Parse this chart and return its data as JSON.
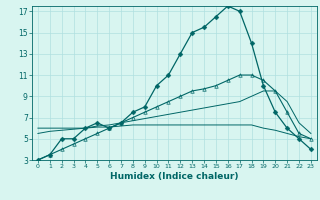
{
  "xlabel": "Humidex (Indice chaleur)",
  "background_color": "#d8f5f0",
  "grid_color": "#b0e0e0",
  "line_color": "#006666",
  "x_main": [
    0,
    1,
    2,
    3,
    4,
    5,
    6,
    7,
    8,
    9,
    10,
    11,
    12,
    13,
    14,
    15,
    16,
    17,
    18,
    19,
    20,
    21,
    22,
    23
  ],
  "y_main": [
    3,
    3.5,
    5,
    5,
    6,
    6.5,
    6,
    6.5,
    7.5,
    8,
    10,
    11,
    13,
    15,
    15.5,
    16.5,
    17.5,
    17,
    14,
    10,
    7.5,
    6,
    5,
    4
  ],
  "y_trend": [
    3,
    3.5,
    4,
    4.5,
    5,
    5.5,
    6,
    6.5,
    7,
    7.5,
    8,
    8.5,
    9,
    9.5,
    9.7,
    10,
    10.5,
    11,
    11,
    10.5,
    9.5,
    7.5,
    5.5,
    5
  ],
  "y_flat": [
    6,
    6,
    6,
    6,
    6,
    6.1,
    6.1,
    6.2,
    6.3,
    6.3,
    6.3,
    6.3,
    6.3,
    6.3,
    6.3,
    6.3,
    6.3,
    6.3,
    6.3,
    6.0,
    5.8,
    5.5,
    5.2,
    5
  ],
  "y_rise": [
    5.5,
    5.7,
    5.8,
    5.9,
    6.0,
    6.2,
    6.3,
    6.5,
    6.7,
    6.9,
    7.1,
    7.3,
    7.5,
    7.7,
    7.9,
    8.1,
    8.3,
    8.5,
    9.0,
    9.5,
    9.5,
    8.5,
    6.5,
    5.5
  ],
  "ylim": [
    3,
    17.5
  ],
  "xlim": [
    -0.5,
    23.5
  ],
  "yticks": [
    3,
    5,
    7,
    9,
    11,
    13,
    15,
    17
  ],
  "xticks": [
    0,
    1,
    2,
    3,
    4,
    5,
    6,
    7,
    8,
    9,
    10,
    11,
    12,
    13,
    14,
    15,
    16,
    17,
    18,
    19,
    20,
    21,
    22,
    23
  ],
  "markersize": 2.5
}
